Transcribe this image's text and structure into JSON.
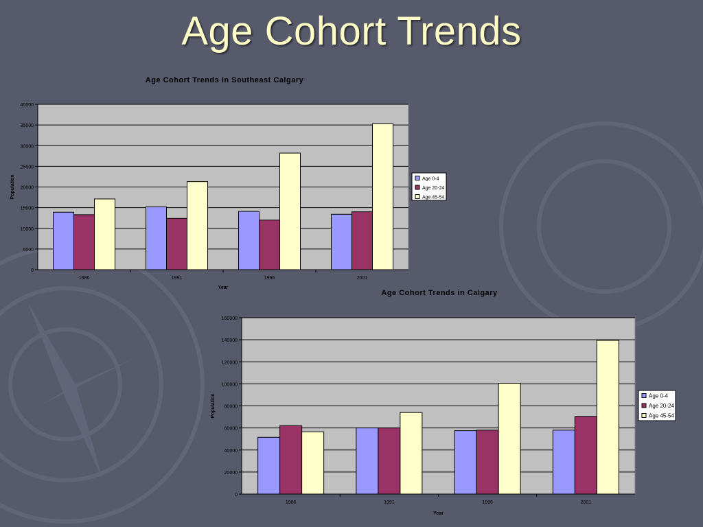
{
  "slide": {
    "title": "Age Cohort Trends"
  },
  "colors": {
    "background": "#575a6b",
    "title": "#fefcc6",
    "plot_area": "#c0c0c0",
    "series": [
      "#9999ff",
      "#993366",
      "#ffffcc"
    ]
  },
  "chart_data": [
    {
      "type": "bar",
      "title": "Age Cohort Trends in Southeast Calgary",
      "xlabel": "Year",
      "ylabel": "Population",
      "categories": [
        "1986",
        "1991",
        "1996",
        "2001"
      ],
      "ylim": [
        0,
        40000
      ],
      "yticks": [
        0,
        5000,
        10000,
        15000,
        20000,
        25000,
        30000,
        35000,
        40000
      ],
      "grid": true,
      "legend": "right",
      "series": [
        {
          "name": "Age 0-4",
          "values": [
            13900,
            15200,
            14100,
            13400
          ]
        },
        {
          "name": "Age 20-24",
          "values": [
            13300,
            12400,
            12000,
            14000
          ]
        },
        {
          "name": "Age 45-54",
          "values": [
            17100,
            21300,
            28200,
            35300
          ]
        }
      ]
    },
    {
      "type": "bar",
      "title": "Age Cohort Trends in Calgary",
      "xlabel": "Year",
      "ylabel": "Population",
      "categories": [
        "1986",
        "1991",
        "1996",
        "2001"
      ],
      "ylim": [
        0,
        160000
      ],
      "yticks": [
        0,
        20000,
        40000,
        60000,
        80000,
        100000,
        120000,
        140000,
        160000
      ],
      "grid": true,
      "legend": "right",
      "series": [
        {
          "name": "Age 0-4",
          "values": [
            51500,
            60000,
            57500,
            58000
          ]
        },
        {
          "name": "Age 20-24",
          "values": [
            62000,
            60000,
            58000,
            70500
          ]
        },
        {
          "name": "Age 45-54",
          "values": [
            56500,
            74000,
            100500,
            139500
          ]
        }
      ]
    }
  ]
}
